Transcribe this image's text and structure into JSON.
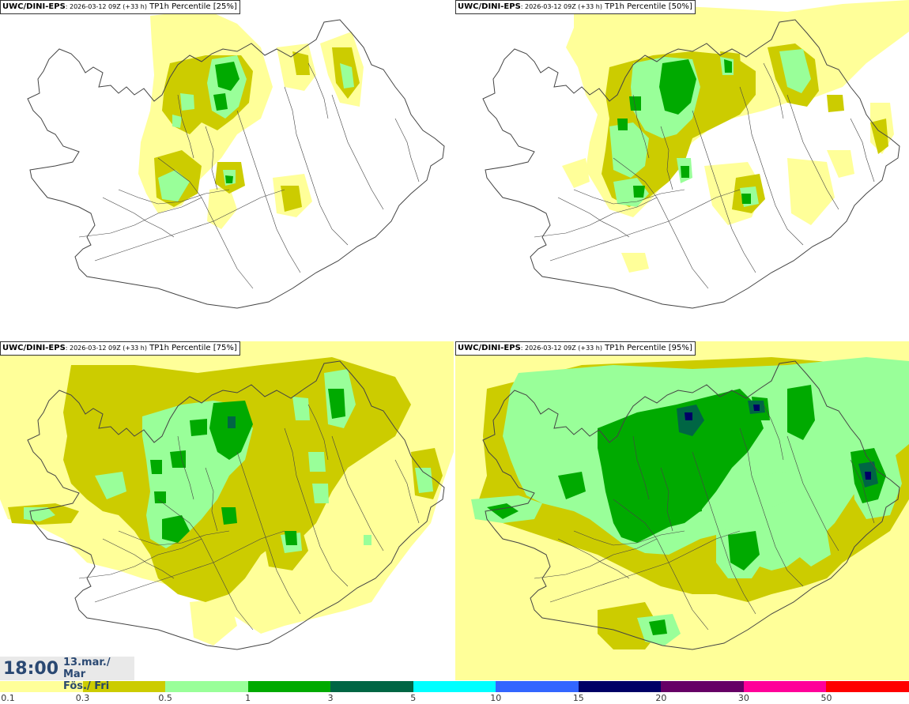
{
  "panels": [
    {
      "model": "UWC/DINI-EPS",
      "run": ": 2026-03-12 09Z (+33 h)",
      "field": " TP1h Percentile [25%]",
      "level": 1
    },
    {
      "model": "UWC/DINI-EPS",
      "run": ": 2026-03-12 09Z (+33 h)",
      "field": " TP1h Percentile [50%]",
      "level": 2
    },
    {
      "model": "UWC/DINI-EPS",
      "run": ": 2026-03-12 09Z (+33 h)",
      "field": " TP1h Percentile [75%]",
      "level": 3
    },
    {
      "model": "UWC/DINI-EPS",
      "run": ": 2026-03-12 09Z (+33 h)",
      "field": " TP1h Percentile [95%]",
      "level": 4
    }
  ],
  "valid_time": {
    "time": "18:00",
    "date_line1": "13.mar./ Mar",
    "date_line2": "Fös./ Fri"
  },
  "legend": {
    "thresholds": [
      "0.1",
      "0.3",
      "0.5",
      "1",
      "3",
      "5",
      "10",
      "15",
      "20",
      "30",
      "50"
    ],
    "colors": [
      "#ffff99",
      "#cccc00",
      "#99ff99",
      "#00aa00",
      "#006644",
      "#00ffff",
      "#3366ff",
      "#000066",
      "#660066",
      "#ff0099",
      "#ff0000"
    ]
  },
  "colors": {
    "outline": "#444444",
    "title_text": "#1f3f6b"
  }
}
